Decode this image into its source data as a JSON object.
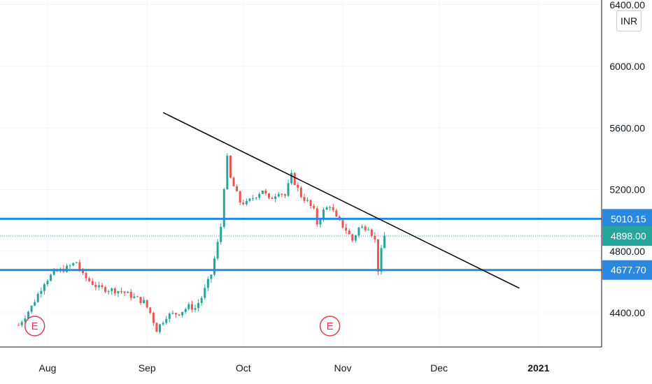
{
  "chart_data": {
    "type": "candlestick",
    "currency": "INR",
    "y_axis": {
      "ticks": [
        4400,
        4800,
        5200,
        5600,
        6000,
        6400
      ],
      "labels": [
        "4400.00",
        "4800.00",
        "5200.00",
        "5600.00",
        "6000.00",
        "6400.00"
      ],
      "ylim": [
        4200,
        6440
      ]
    },
    "x_axis": {
      "labels": [
        {
          "text": "Aug",
          "date": "2020-08-01"
        },
        {
          "text": "Sep",
          "date": "2020-09-01"
        },
        {
          "text": "Oct",
          "date": "2020-10-01"
        },
        {
          "text": "Nov",
          "date": "2020-11-01"
        },
        {
          "text": "Dec",
          "date": "2020-12-01"
        },
        {
          "text": "2021",
          "date": "2021-01-01",
          "bold": true
        }
      ]
    },
    "horizontal_levels": [
      {
        "price": 5010.15,
        "label": "5010.15",
        "color": "#2a88e0"
      },
      {
        "price": 4677.7,
        "label": "4677.70",
        "color": "#2a88e0"
      }
    ],
    "last_price": {
      "price": 4898.0,
      "label": "4898.00",
      "color": "#26a69a"
    },
    "trendline": {
      "start": {
        "date": "2020-09-06",
        "price": 5700
      },
      "end": {
        "date": "2020-12-26",
        "price": 4560
      },
      "color": "#000000"
    },
    "events": [
      {
        "date": "2020-07-28",
        "label": "E"
      },
      {
        "date": "2020-10-28",
        "label": "E"
      }
    ],
    "anchors": [
      [
        "2020-07-23",
        4320
      ],
      [
        "2020-07-27",
        4440
      ],
      [
        "2020-07-31",
        4600
      ],
      [
        "2020-08-03",
        4660
      ],
      [
        "2020-08-07",
        4690
      ],
      [
        "2020-08-10",
        4730
      ],
      [
        "2020-08-12",
        4640
      ],
      [
        "2020-08-17",
        4560
      ],
      [
        "2020-08-24",
        4540
      ],
      [
        "2020-08-31",
        4470
      ],
      [
        "2020-09-02",
        4400
      ],
      [
        "2020-09-04",
        4290
      ],
      [
        "2020-09-07",
        4380
      ],
      [
        "2020-09-11",
        4400
      ],
      [
        "2020-09-14",
        4440
      ],
      [
        "2020-09-16",
        4430
      ],
      [
        "2020-09-18",
        4500
      ],
      [
        "2020-09-21",
        4650
      ],
      [
        "2020-09-23",
        4850
      ],
      [
        "2020-09-24",
        4960
      ],
      [
        "2020-09-25",
        5220
      ],
      [
        "2020-09-26",
        5400
      ],
      [
        "2020-09-27",
        5270
      ],
      [
        "2020-09-30",
        5120
      ],
      [
        "2020-10-02",
        5110
      ],
      [
        "2020-10-07",
        5200
      ],
      [
        "2020-10-09",
        5130
      ],
      [
        "2020-10-12",
        5190
      ],
      [
        "2020-10-14",
        5160
      ],
      [
        "2020-10-16",
        5290
      ],
      [
        "2020-10-19",
        5160
      ],
      [
        "2020-10-21",
        5120
      ],
      [
        "2020-10-23",
        5060
      ],
      [
        "2020-10-24",
        4980
      ],
      [
        "2020-10-26",
        5060
      ],
      [
        "2020-10-28",
        5100
      ],
      [
        "2020-10-30",
        5010
      ],
      [
        "2020-11-02",
        4940
      ],
      [
        "2020-11-04",
        4870
      ],
      [
        "2020-11-06",
        4950
      ],
      [
        "2020-11-09",
        4960
      ],
      [
        "2020-11-11",
        4870
      ],
      [
        "2020-11-12",
        4680
      ],
      [
        "2020-11-13",
        4800
      ],
      [
        "2020-11-14",
        4898
      ]
    ]
  }
}
